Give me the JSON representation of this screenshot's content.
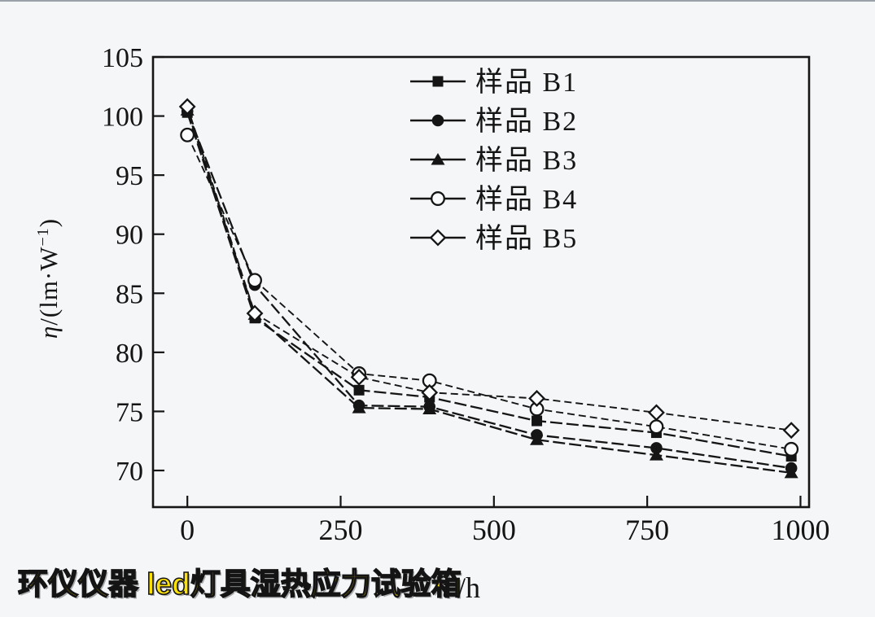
{
  "page": {
    "background": "#f4f6f8",
    "caption": {
      "text": "环仪仪器 led灯具湿热应力试验箱",
      "color": "#ffe10a"
    }
  },
  "chart_data": {
    "type": "line",
    "title": "",
    "xlabel": "t/h",
    "xlabel_parts": {
      "symbol": "t",
      "rest": " /h"
    },
    "ylabel": "η/(lm·W⁻¹)",
    "ylabel_parts": {
      "symbol": "η",
      "open": "/(lm·W",
      "sup": "−1",
      "close": ")"
    },
    "xlim": [
      -56,
      1014
    ],
    "ylim": [
      66.9,
      105
    ],
    "x_ticks": [
      0,
      250,
      500,
      750,
      1000
    ],
    "y_ticks": [
      105,
      100,
      95,
      90,
      85,
      80,
      75,
      70
    ],
    "grid": false,
    "legend_position": "top-center-inside",
    "line_color": "#151515",
    "x": [
      0,
      110,
      280,
      395,
      570,
      765,
      985
    ],
    "series": [
      {
        "key": "b1",
        "name": "样品 B1",
        "marker": "filled-square",
        "values": [
          100.3,
          82.9,
          76.8,
          76.2,
          74.2,
          73.2,
          71.2
        ]
      },
      {
        "key": "b2",
        "name": "样品 B2",
        "marker": "filled-circle",
        "values": [
          100.4,
          85.7,
          75.5,
          75.4,
          73.0,
          71.9,
          70.2
        ]
      },
      {
        "key": "b3",
        "name": "样品 B3",
        "marker": "filled-triangle",
        "values": [
          100.5,
          83.2,
          75.3,
          75.2,
          72.6,
          71.3,
          69.8
        ]
      },
      {
        "key": "b4",
        "name": "样品 B4",
        "marker": "open-circle",
        "values": [
          98.4,
          86.1,
          78.2,
          77.6,
          75.2,
          73.7,
          71.8
        ]
      },
      {
        "key": "b5",
        "name": "样品 B5",
        "marker": "open-diamond",
        "values": [
          100.8,
          83.3,
          77.9,
          76.6,
          76.1,
          74.9,
          73.4
        ]
      }
    ]
  }
}
